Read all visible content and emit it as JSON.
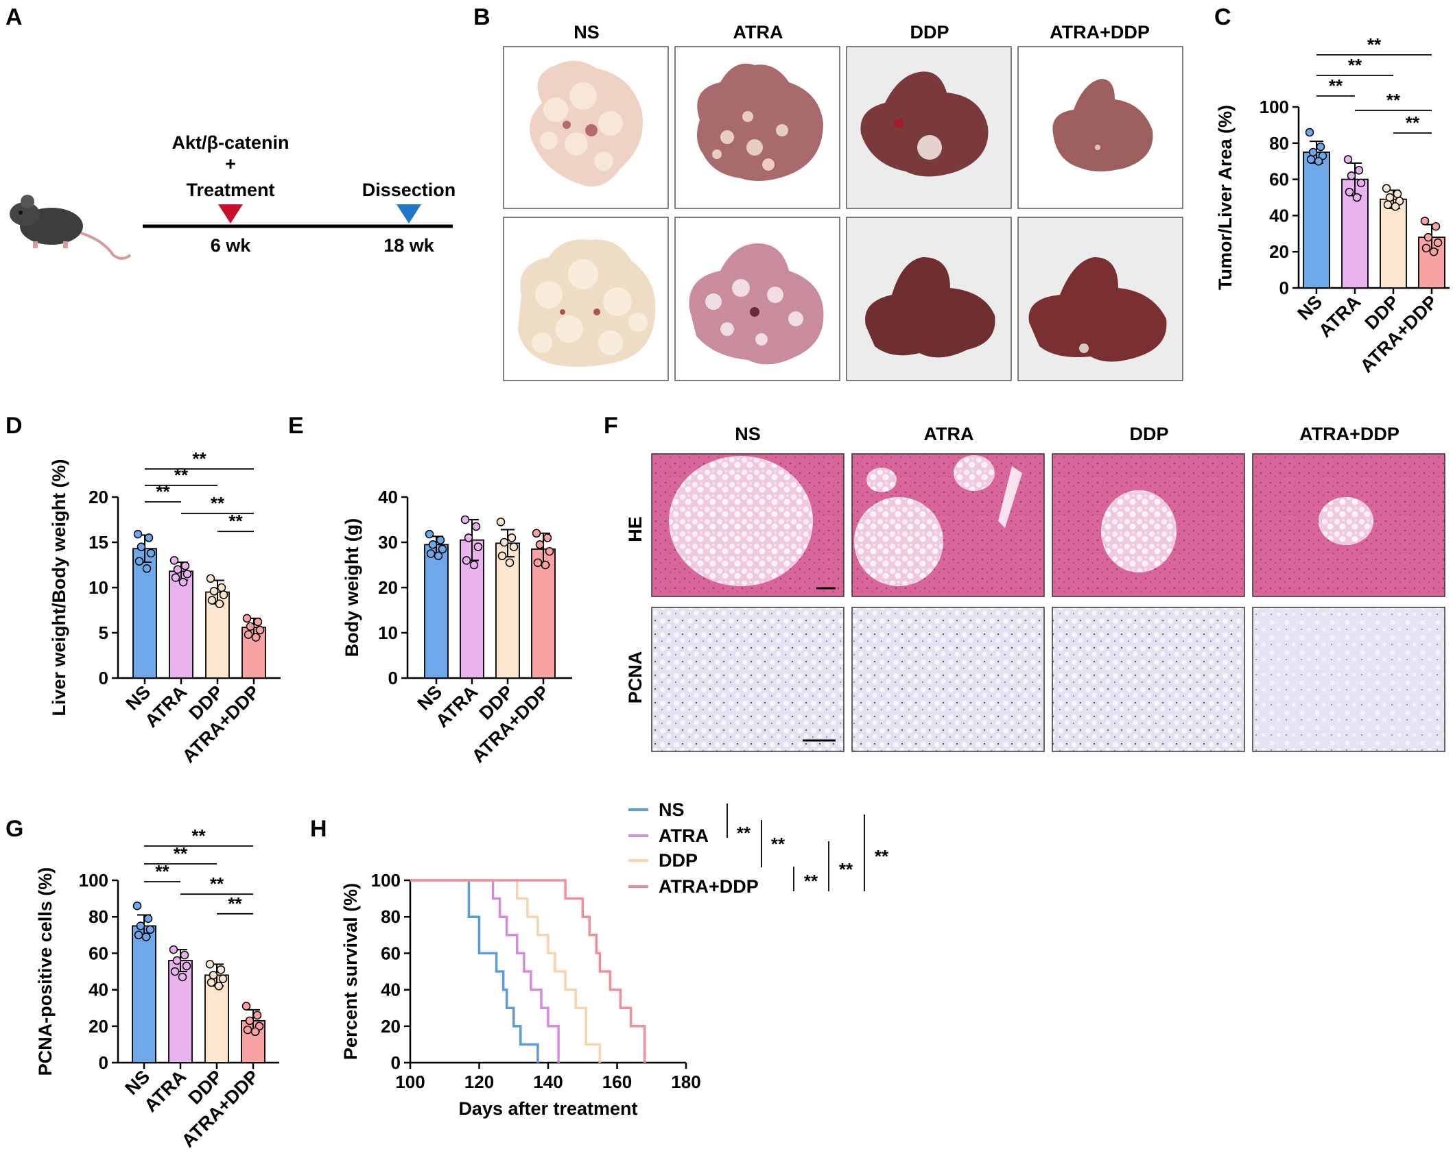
{
  "panel_letters": {
    "A": "A",
    "B": "B",
    "C": "C",
    "D": "D",
    "E": "E",
    "F": "F",
    "G": "G",
    "H": "H"
  },
  "colors": {
    "NS": "#6fa8e8",
    "ATRA": "#e9b3f0",
    "DDP": "#fde6cf",
    "ATRA+DDP": "#f7a3a3",
    "NS_line": "#5b9be0",
    "ATRA_line": "#d48ae0",
    "DDP_line": "#f9d3ad",
    "ATRA+DDP_line": "#f08f98",
    "HE": "#dc6fa0",
    "PCNA": "#e3e0f0",
    "triangle_red": "#c8102e",
    "triangle_blue": "#1f78c8"
  },
  "schematic": {
    "line1": "Akt/β-catenin",
    "line2": "+",
    "line3": "Treatment",
    "dissection": "Dissection",
    "week1": "6 wk",
    "week2": "18 wk",
    "mouse_icon": "mouse-icon"
  },
  "panel_b": {
    "columns": [
      "NS",
      "ATRA",
      "DDP",
      "ATRA+DDP"
    ],
    "rows": 2,
    "photo_kind": "liver-photo"
  },
  "panel_f": {
    "columns": [
      "NS",
      "ATRA",
      "DDP",
      "ATRA+DDP"
    ],
    "row_labels": [
      "HE",
      "PCNA"
    ]
  },
  "sig": "**",
  "chart_data": [
    {
      "panel": "C",
      "type": "bar",
      "ylabel": "Tumor/Liver Area (%)",
      "categories": [
        "NS",
        "ATRA",
        "DDP",
        "ATRA+DDP"
      ],
      "values": [
        75,
        60,
        49,
        28
      ],
      "errors": [
        6,
        9,
        5,
        7
      ],
      "points": [
        [
          86,
          78,
          75,
          73,
          71,
          70
        ],
        [
          71,
          65,
          62,
          58,
          53,
          50
        ],
        [
          55,
          52,
          50,
          48,
          46,
          45
        ],
        [
          37,
          34,
          28,
          25,
          22,
          20
        ]
      ],
      "ylim": [
        0,
        100
      ],
      "yticks": [
        0,
        20,
        40,
        60,
        80,
        100
      ],
      "significance": [
        {
          "from": 0,
          "to": 3,
          "label": "**"
        },
        {
          "from": 0,
          "to": 2,
          "label": "**"
        },
        {
          "from": 0,
          "to": 1,
          "label": "**"
        },
        {
          "from": 1,
          "to": 3,
          "label": "**"
        },
        {
          "from": 2,
          "to": 3,
          "label": "**"
        }
      ]
    },
    {
      "panel": "D",
      "type": "bar",
      "ylabel": "Liver weight/Body weight (%)",
      "categories": [
        "NS",
        "ATRA",
        "DDP",
        "ATRA+DDP"
      ],
      "values": [
        14.3,
        11.8,
        9.5,
        5.6
      ],
      "errors": [
        1.5,
        1.0,
        1.3,
        1.0
      ],
      "points": [
        [
          15.9,
          15.5,
          14.5,
          13.8,
          12.9,
          12.1
        ],
        [
          13.0,
          12.4,
          12.0,
          11.5,
          11.1,
          10.6
        ],
        [
          11.0,
          10.0,
          9.6,
          9.2,
          8.6,
          8.2
        ],
        [
          6.6,
          6.2,
          5.7,
          5.3,
          4.8,
          4.5
        ]
      ],
      "ylim": [
        0,
        20
      ],
      "yticks": [
        0,
        5,
        10,
        15,
        20
      ],
      "significance": [
        {
          "from": 0,
          "to": 3,
          "label": "**"
        },
        {
          "from": 0,
          "to": 2,
          "label": "**"
        },
        {
          "from": 0,
          "to": 1,
          "label": "**"
        },
        {
          "from": 1,
          "to": 3,
          "label": "**"
        },
        {
          "from": 2,
          "to": 3,
          "label": "**"
        }
      ]
    },
    {
      "panel": "E",
      "type": "bar",
      "ylabel": "Body weight (g)",
      "categories": [
        "NS",
        "ATRA",
        "DDP",
        "ATRA+DDP"
      ],
      "values": [
        29.5,
        30.5,
        29.8,
        28.5
      ],
      "errors": [
        1.8,
        4.5,
        3.0,
        3.5
      ],
      "points": [
        [
          31.8,
          30.5,
          29.5,
          28.5,
          27.5,
          27.0
        ],
        [
          35.0,
          33.5,
          31.0,
          29.0,
          26.0,
          25.0
        ],
        [
          34.5,
          31.0,
          30.0,
          29.0,
          27.0,
          25.5
        ],
        [
          32.0,
          31.0,
          29.5,
          28.0,
          25.5,
          25.0
        ]
      ],
      "ylim": [
        0,
        40
      ],
      "yticks": [
        0,
        10,
        20,
        30,
        40
      ],
      "significance": []
    },
    {
      "panel": "G",
      "type": "bar",
      "ylabel": "PCNA-positive cells (%)",
      "categories": [
        "NS",
        "ATRA",
        "DDP",
        "ATRA+DDP"
      ],
      "values": [
        75,
        56,
        48,
        23
      ],
      "errors": [
        6,
        6,
        6,
        6
      ],
      "points": [
        [
          86,
          79,
          75,
          73,
          70,
          69
        ],
        [
          62,
          59,
          56,
          53,
          50,
          47
        ],
        [
          54,
          51,
          48,
          46,
          44,
          42
        ],
        [
          31,
          26,
          23,
          20,
          18,
          17
        ]
      ],
      "ylim": [
        0,
        100
      ],
      "yticks": [
        0,
        20,
        40,
        60,
        80,
        100
      ],
      "significance": [
        {
          "from": 0,
          "to": 3,
          "label": "**"
        },
        {
          "from": 0,
          "to": 2,
          "label": "**"
        },
        {
          "from": 0,
          "to": 1,
          "label": "**"
        },
        {
          "from": 1,
          "to": 3,
          "label": "**"
        },
        {
          "from": 2,
          "to": 3,
          "label": "**"
        }
      ]
    },
    {
      "panel": "H",
      "type": "line",
      "subtype": "survival-step",
      "xlabel": "Days after treatment",
      "ylabel": "Percent survival (%)",
      "xlim": [
        100,
        180
      ],
      "ylim": [
        0,
        100
      ],
      "xticks": [
        100,
        120,
        140,
        160,
        180
      ],
      "yticks": [
        0,
        20,
        40,
        60,
        80,
        100
      ],
      "series": [
        {
          "name": "NS",
          "x": [
            100,
            115,
            117,
            120,
            124,
            125,
            127,
            128,
            130,
            132,
            137
          ],
          "y": [
            100,
            100,
            80,
            60,
            60,
            50,
            40,
            30,
            20,
            10,
            0
          ]
        },
        {
          "name": "ATRA",
          "x": [
            100,
            122,
            124,
            126,
            128,
            131,
            133,
            135,
            138,
            140,
            143
          ],
          "y": [
            100,
            100,
            90,
            80,
            70,
            60,
            50,
            40,
            30,
            20,
            0
          ]
        },
        {
          "name": "DDP",
          "x": [
            100,
            129,
            131,
            134,
            137,
            140,
            142,
            145,
            148,
            151,
            155
          ],
          "y": [
            100,
            100,
            90,
            80,
            70,
            60,
            50,
            40,
            30,
            10,
            0
          ]
        },
        {
          "name": "ATRA+DDP",
          "x": [
            100,
            143,
            145,
            150,
            152,
            154,
            155,
            158,
            161,
            164,
            168
          ],
          "y": [
            100,
            100,
            90,
            80,
            70,
            60,
            50,
            40,
            30,
            20,
            0
          ]
        }
      ],
      "legend_placement": "top-right",
      "significance_label": "**"
    }
  ]
}
